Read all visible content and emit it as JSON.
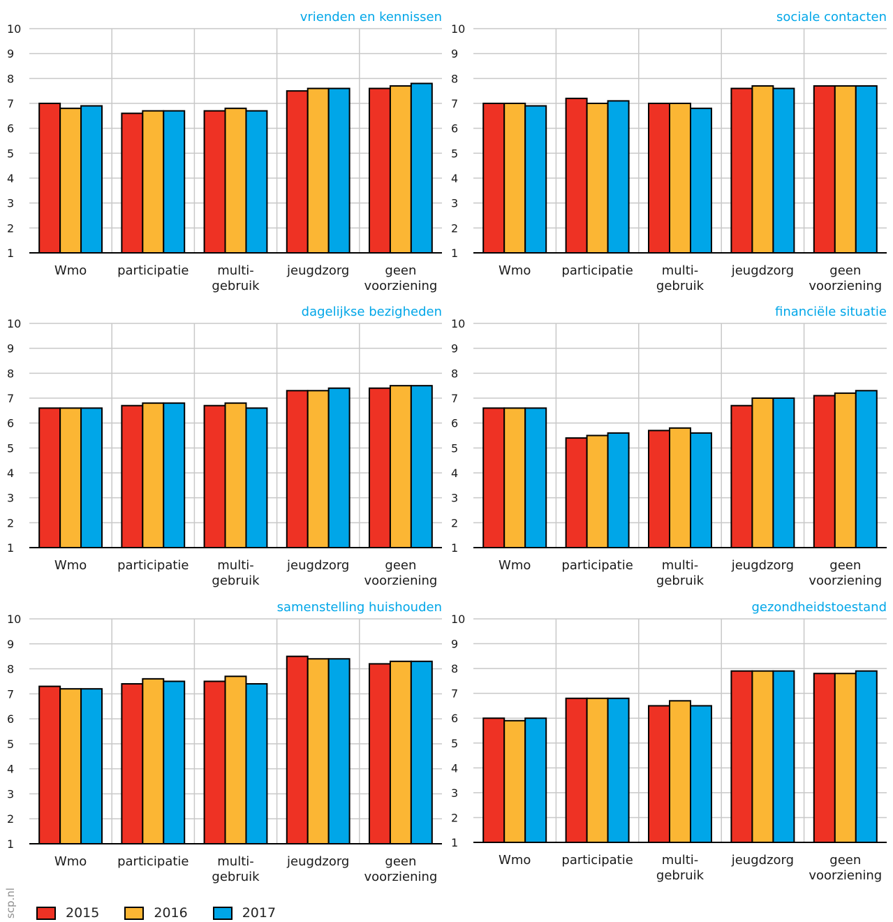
{
  "chart_data": [
    {
      "type": "bar",
      "title": "vrienden en kennissen",
      "categories": [
        "Wmo",
        "participatie",
        "multi-\ngebruik",
        "jeugdzorg",
        "geen\nvoorziening"
      ],
      "series": [
        {
          "name": "2015",
          "values": [
            7.0,
            6.6,
            6.7,
            7.5,
            7.6
          ]
        },
        {
          "name": "2016",
          "values": [
            6.8,
            6.7,
            6.8,
            7.6,
            7.7
          ]
        },
        {
          "name": "2017",
          "values": [
            6.9,
            6.7,
            6.7,
            7.6,
            7.8
          ]
        }
      ],
      "ylim": [
        1,
        10
      ],
      "yticks": [
        1,
        2,
        3,
        4,
        5,
        6,
        7,
        8,
        9,
        10
      ],
      "grid": true
    },
    {
      "type": "bar",
      "title": "sociale contacten",
      "categories": [
        "Wmo",
        "participatie",
        "multi-\ngebruik",
        "jeugdzorg",
        "geen\nvoorziening"
      ],
      "series": [
        {
          "name": "2015",
          "values": [
            7.0,
            7.2,
            7.0,
            7.6,
            7.7
          ]
        },
        {
          "name": "2016",
          "values": [
            7.0,
            7.0,
            7.0,
            7.7,
            7.7
          ]
        },
        {
          "name": "2017",
          "values": [
            6.9,
            7.1,
            6.8,
            7.6,
            7.7
          ]
        }
      ],
      "ylim": [
        1,
        10
      ],
      "yticks": [
        1,
        2,
        3,
        4,
        5,
        6,
        7,
        8,
        9,
        10
      ],
      "grid": true
    },
    {
      "type": "bar",
      "title": "dagelijkse bezigheden",
      "categories": [
        "Wmo",
        "participatie",
        "multi-\ngebruik",
        "jeugdzorg",
        "geen\nvoorziening"
      ],
      "series": [
        {
          "name": "2015",
          "values": [
            6.6,
            6.7,
            6.7,
            7.3,
            7.4
          ]
        },
        {
          "name": "2016",
          "values": [
            6.6,
            6.8,
            6.8,
            7.3,
            7.5
          ]
        },
        {
          "name": "2017",
          "values": [
            6.6,
            6.8,
            6.6,
            7.4,
            7.5
          ]
        }
      ],
      "ylim": [
        1,
        10
      ],
      "yticks": [
        1,
        2,
        3,
        4,
        5,
        6,
        7,
        8,
        9,
        10
      ],
      "grid": true
    },
    {
      "type": "bar",
      "title": "financiële situatie",
      "categories": [
        "Wmo",
        "participatie",
        "multi-\ngebruik",
        "jeugdzorg",
        "geen\nvoorziening"
      ],
      "series": [
        {
          "name": "2015",
          "values": [
            6.6,
            5.4,
            5.7,
            6.7,
            7.1
          ]
        },
        {
          "name": "2016",
          "values": [
            6.6,
            5.5,
            5.8,
            7.0,
            7.2
          ]
        },
        {
          "name": "2017",
          "values": [
            6.6,
            5.6,
            5.6,
            7.0,
            7.3
          ]
        }
      ],
      "ylim": [
        1,
        10
      ],
      "yticks": [
        1,
        2,
        3,
        4,
        5,
        6,
        7,
        8,
        9,
        10
      ],
      "grid": true
    },
    {
      "type": "bar",
      "title": "samenstelling huishouden",
      "categories": [
        "Wmo",
        "participatie",
        "multi-\ngebruik",
        "jeugdzorg",
        "geen\nvoorziening"
      ],
      "series": [
        {
          "name": "2015",
          "values": [
            7.3,
            7.4,
            7.5,
            8.5,
            8.2
          ]
        },
        {
          "name": "2016",
          "values": [
            7.2,
            7.6,
            7.7,
            8.4,
            8.3
          ]
        },
        {
          "name": "2017",
          "values": [
            7.2,
            7.5,
            7.4,
            8.4,
            8.3
          ]
        }
      ],
      "ylim": [
        1,
        10
      ],
      "yticks": [
        1,
        2,
        3,
        4,
        5,
        6,
        7,
        8,
        9,
        10
      ],
      "grid": true
    },
    {
      "type": "bar",
      "title": "gezondheidstoestand",
      "categories": [
        "Wmo",
        "participatie",
        "multi-\ngebruik",
        "jeugdzorg",
        "geen\nvoorziening"
      ],
      "series": [
        {
          "name": "2015",
          "values": [
            6.0,
            6.8,
            6.5,
            7.9,
            7.8
          ]
        },
        {
          "name": "2016",
          "values": [
            5.9,
            6.8,
            6.7,
            7.9,
            7.8
          ]
        },
        {
          "name": "2017",
          "values": [
            6.0,
            6.8,
            6.5,
            7.9,
            7.9
          ]
        }
      ],
      "ylim": [
        1,
        10
      ],
      "yticks": [
        1,
        2,
        3,
        4,
        5,
        6,
        7,
        8,
        9,
        10
      ],
      "grid": true
    }
  ],
  "legend": {
    "placement": "bottom-left",
    "items": [
      {
        "label": "2015",
        "color": "#ee3224"
      },
      {
        "label": "2016",
        "color": "#fbb634"
      },
      {
        "label": "2017",
        "color": "#00a6e8"
      }
    ]
  },
  "source": "scp.nl",
  "colors": {
    "title": "#00a6e8",
    "grid": "#c8c8c8",
    "axis": "#000000",
    "text": "#1a1a1a"
  }
}
